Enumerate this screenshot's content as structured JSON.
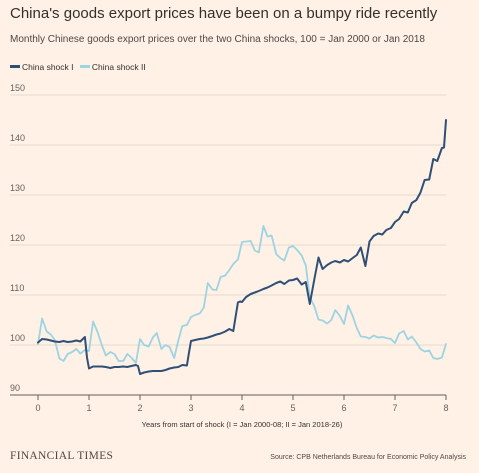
{
  "chart_data": {
    "type": "line",
    "title": "China's goods export prices have been on a bumpy ride recently",
    "subtitle": "Monthly Chinese goods export prices over the two China shocks, 100 = Jan 2000 or Jan 2018",
    "xlabel": "Years from start of shock (I = Jan 2000-08; II = Jan 2018-26)",
    "ylabel": "",
    "xlim": [
      0,
      8
    ],
    "ylim": [
      90,
      150
    ],
    "xticks": [
      "0",
      "1",
      "2",
      "3",
      "4",
      "5",
      "6",
      "7",
      "8"
    ],
    "yticks": [
      "90",
      "100",
      "110",
      "120",
      "130",
      "140",
      "150"
    ],
    "grid": true,
    "legend_position": "top-left",
    "series": [
      {
        "name": "China shock I",
        "color": "#2f4f76",
        "x": [
          0,
          0.08,
          0.17,
          0.25,
          0.33,
          0.42,
          0.5,
          0.58,
          0.67,
          0.75,
          0.83,
          0.92,
          0.96,
          1.0,
          1.08,
          1.17,
          1.25,
          1.33,
          1.42,
          1.5,
          1.58,
          1.67,
          1.75,
          1.83,
          1.92,
          1.96,
          2.0,
          2.08,
          2.17,
          2.25,
          2.33,
          2.42,
          2.5,
          2.58,
          2.67,
          2.75,
          2.83,
          2.92,
          2.96,
          3.0,
          3.08,
          3.17,
          3.25,
          3.33,
          3.42,
          3.5,
          3.58,
          3.67,
          3.75,
          3.83,
          3.92,
          3.96,
          4.0,
          4.08,
          4.17,
          4.25,
          4.33,
          4.42,
          4.5,
          4.58,
          4.67,
          4.75,
          4.83,
          4.92,
          5.0,
          5.08,
          5.17,
          5.25,
          5.33,
          5.42,
          5.5,
          5.58,
          5.67,
          5.75,
          5.83,
          5.92,
          6.0,
          6.08,
          6.17,
          6.25,
          6.33,
          6.42,
          6.5,
          6.58,
          6.67,
          6.75,
          6.83,
          6.92,
          7.0,
          7.08,
          7.17,
          7.25,
          7.33,
          7.42,
          7.5,
          7.58,
          7.67,
          7.75,
          7.83,
          7.92,
          7.96,
          8.0
        ],
        "values": [
          100.5,
          101.2,
          101.1,
          100.9,
          100.7,
          100.6,
          100.8,
          100.6,
          100.7,
          100.9,
          100.7,
          101.6,
          97.5,
          95.3,
          95.7,
          95.7,
          95.7,
          95.6,
          95.4,
          95.6,
          95.6,
          95.7,
          95.6,
          95.8,
          96.0,
          95.8,
          94.2,
          94.5,
          94.7,
          94.8,
          94.8,
          94.8,
          95.0,
          95.3,
          95.5,
          95.6,
          96.0,
          95.9,
          98.5,
          100.8,
          101.0,
          101.2,
          101.3,
          101.5,
          101.8,
          102.1,
          102.3,
          102.7,
          103.2,
          102.8,
          108.5,
          108.7,
          108.6,
          109.6,
          110.2,
          110.5,
          110.8,
          111.2,
          111.5,
          111.9,
          112.4,
          112.7,
          112.2,
          112.9,
          113.0,
          113.3,
          112.1,
          112.6,
          108.2,
          113.2,
          117.5,
          115.2,
          116.0,
          116.5,
          116.8,
          116.5,
          117.0,
          116.7,
          117.4,
          118.0,
          119.5,
          115.8,
          120.7,
          121.8,
          122.3,
          122.1,
          123.0,
          123.4,
          124.6,
          125.2,
          126.7,
          126.5,
          128.4,
          129.0,
          130.5,
          133.0,
          133.1,
          137.2,
          136.8,
          139.4,
          139.5,
          145.0
        ]
      },
      {
        "name": "China shock II",
        "color": "#9dd3e2",
        "x": [
          0,
          0.08,
          0.17,
          0.25,
          0.33,
          0.42,
          0.5,
          0.58,
          0.67,
          0.75,
          0.83,
          0.92,
          1.0,
          1.08,
          1.17,
          1.25,
          1.33,
          1.42,
          1.5,
          1.58,
          1.67,
          1.75,
          1.83,
          1.92,
          2.0,
          2.08,
          2.17,
          2.25,
          2.33,
          2.42,
          2.5,
          2.58,
          2.67,
          2.75,
          2.83,
          2.92,
          3.0,
          3.08,
          3.17,
          3.25,
          3.33,
          3.42,
          3.5,
          3.58,
          3.67,
          3.75,
          3.83,
          3.92,
          4.0,
          4.08,
          4.17,
          4.25,
          4.33,
          4.42,
          4.5,
          4.58,
          4.67,
          4.75,
          4.83,
          4.92,
          5.0,
          5.08,
          5.17,
          5.25,
          5.33,
          5.42,
          5.5,
          5.58,
          5.67,
          5.75,
          5.83,
          5.92,
          6.0,
          6.08,
          6.17,
          6.25,
          6.33,
          6.42,
          6.5,
          6.58,
          6.67,
          6.75,
          6.83,
          6.92,
          7.0,
          7.08,
          7.17,
          7.25,
          7.33,
          7.42,
          7.5,
          7.58,
          7.67,
          7.75,
          7.83,
          7.92,
          8.0
        ],
        "values": [
          100.2,
          105.3,
          102.7,
          102.1,
          101.0,
          97.3,
          96.8,
          98.2,
          98.6,
          99.2,
          98.3,
          99.0,
          98.8,
          104.7,
          102.5,
          100.0,
          97.9,
          98.6,
          98.2,
          96.8,
          96.8,
          98.2,
          97.5,
          96.4,
          101.2,
          100.0,
          99.7,
          101.5,
          102.4,
          99.2,
          100.0,
          99.6,
          97.4,
          100.9,
          103.8,
          104.0,
          105.6,
          106.0,
          106.3,
          107.5,
          112.4,
          111.1,
          111.0,
          113.6,
          113.9,
          115.0,
          116.2,
          117.1,
          120.6,
          120.7,
          120.8,
          118.9,
          118.5,
          123.8,
          121.7,
          121.9,
          118.2,
          117.4,
          116.9,
          119.5,
          119.8,
          119.0,
          117.9,
          115.9,
          109.6,
          107.7,
          105.1,
          104.9,
          104.3,
          105.0,
          107.0,
          105.8,
          104.2,
          107.9,
          105.8,
          103.4,
          101.7,
          101.6,
          101.3,
          101.9,
          101.5,
          101.6,
          101.4,
          101.2,
          100.4,
          102.3,
          102.8,
          101.1,
          101.7,
          100.5,
          99.2,
          98.7,
          98.9,
          97.4,
          97.2,
          97.5,
          100.2
        ]
      }
    ]
  },
  "footer": {
    "brand": "FINANCIAL TIMES",
    "source": "Source: CPB Netherlands Bureau for Economic Policy Analysis"
  }
}
